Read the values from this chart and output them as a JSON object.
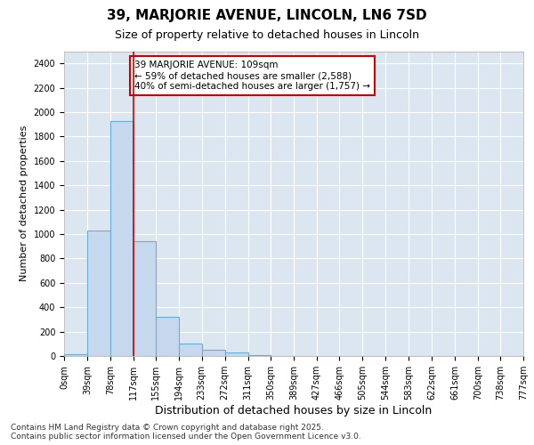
{
  "title1": "39, MARJORIE AVENUE, LINCOLN, LN6 7SD",
  "title2": "Size of property relative to detached houses in Lincoln",
  "xlabel": "Distribution of detached houses by size in Lincoln",
  "ylabel": "Number of detached properties",
  "bar_edges": [
    0,
    39,
    78,
    117,
    155,
    194,
    233,
    272,
    311,
    350,
    389,
    427,
    466,
    505,
    544,
    583,
    622,
    661,
    700,
    738,
    777
  ],
  "bar_heights": [
    15,
    1030,
    1930,
    940,
    320,
    105,
    50,
    30,
    5,
    2,
    1,
    0,
    0,
    0,
    0,
    0,
    0,
    0,
    0,
    0
  ],
  "bar_color": "#c5d8ed",
  "bar_edgecolor": "#6aaed6",
  "vline_x": 117,
  "vline_color": "#cc0000",
  "ylim": [
    0,
    2500
  ],
  "yticks": [
    0,
    200,
    400,
    600,
    800,
    1000,
    1200,
    1400,
    1600,
    1800,
    2000,
    2200,
    2400
  ],
  "annotation_text": "39 MARJORIE AVENUE: 109sqm\n← 59% of detached houses are smaller (2,588)\n40% of semi-detached houses are larger (1,757) →",
  "annotation_box_color": "#cc0000",
  "footnote": "Contains HM Land Registry data © Crown copyright and database right 2025.\nContains public sector information licensed under the Open Government Licence v3.0.",
  "bg_color": "#ffffff",
  "plot_bg_color": "#dce6f0",
  "grid_color": "#ffffff",
  "tick_labels": [
    "0sqm",
    "39sqm",
    "78sqm",
    "117sqm",
    "155sqm",
    "194sqm",
    "233sqm",
    "272sqm",
    "311sqm",
    "350sqm",
    "389sqm",
    "427sqm",
    "466sqm",
    "505sqm",
    "544sqm",
    "583sqm",
    "622sqm",
    "661sqm",
    "700sqm",
    "738sqm",
    "777sqm"
  ],
  "title1_fontsize": 11,
  "title2_fontsize": 9,
  "xlabel_fontsize": 9,
  "ylabel_fontsize": 8,
  "tick_fontsize": 7,
  "footnote_fontsize": 6.5
}
